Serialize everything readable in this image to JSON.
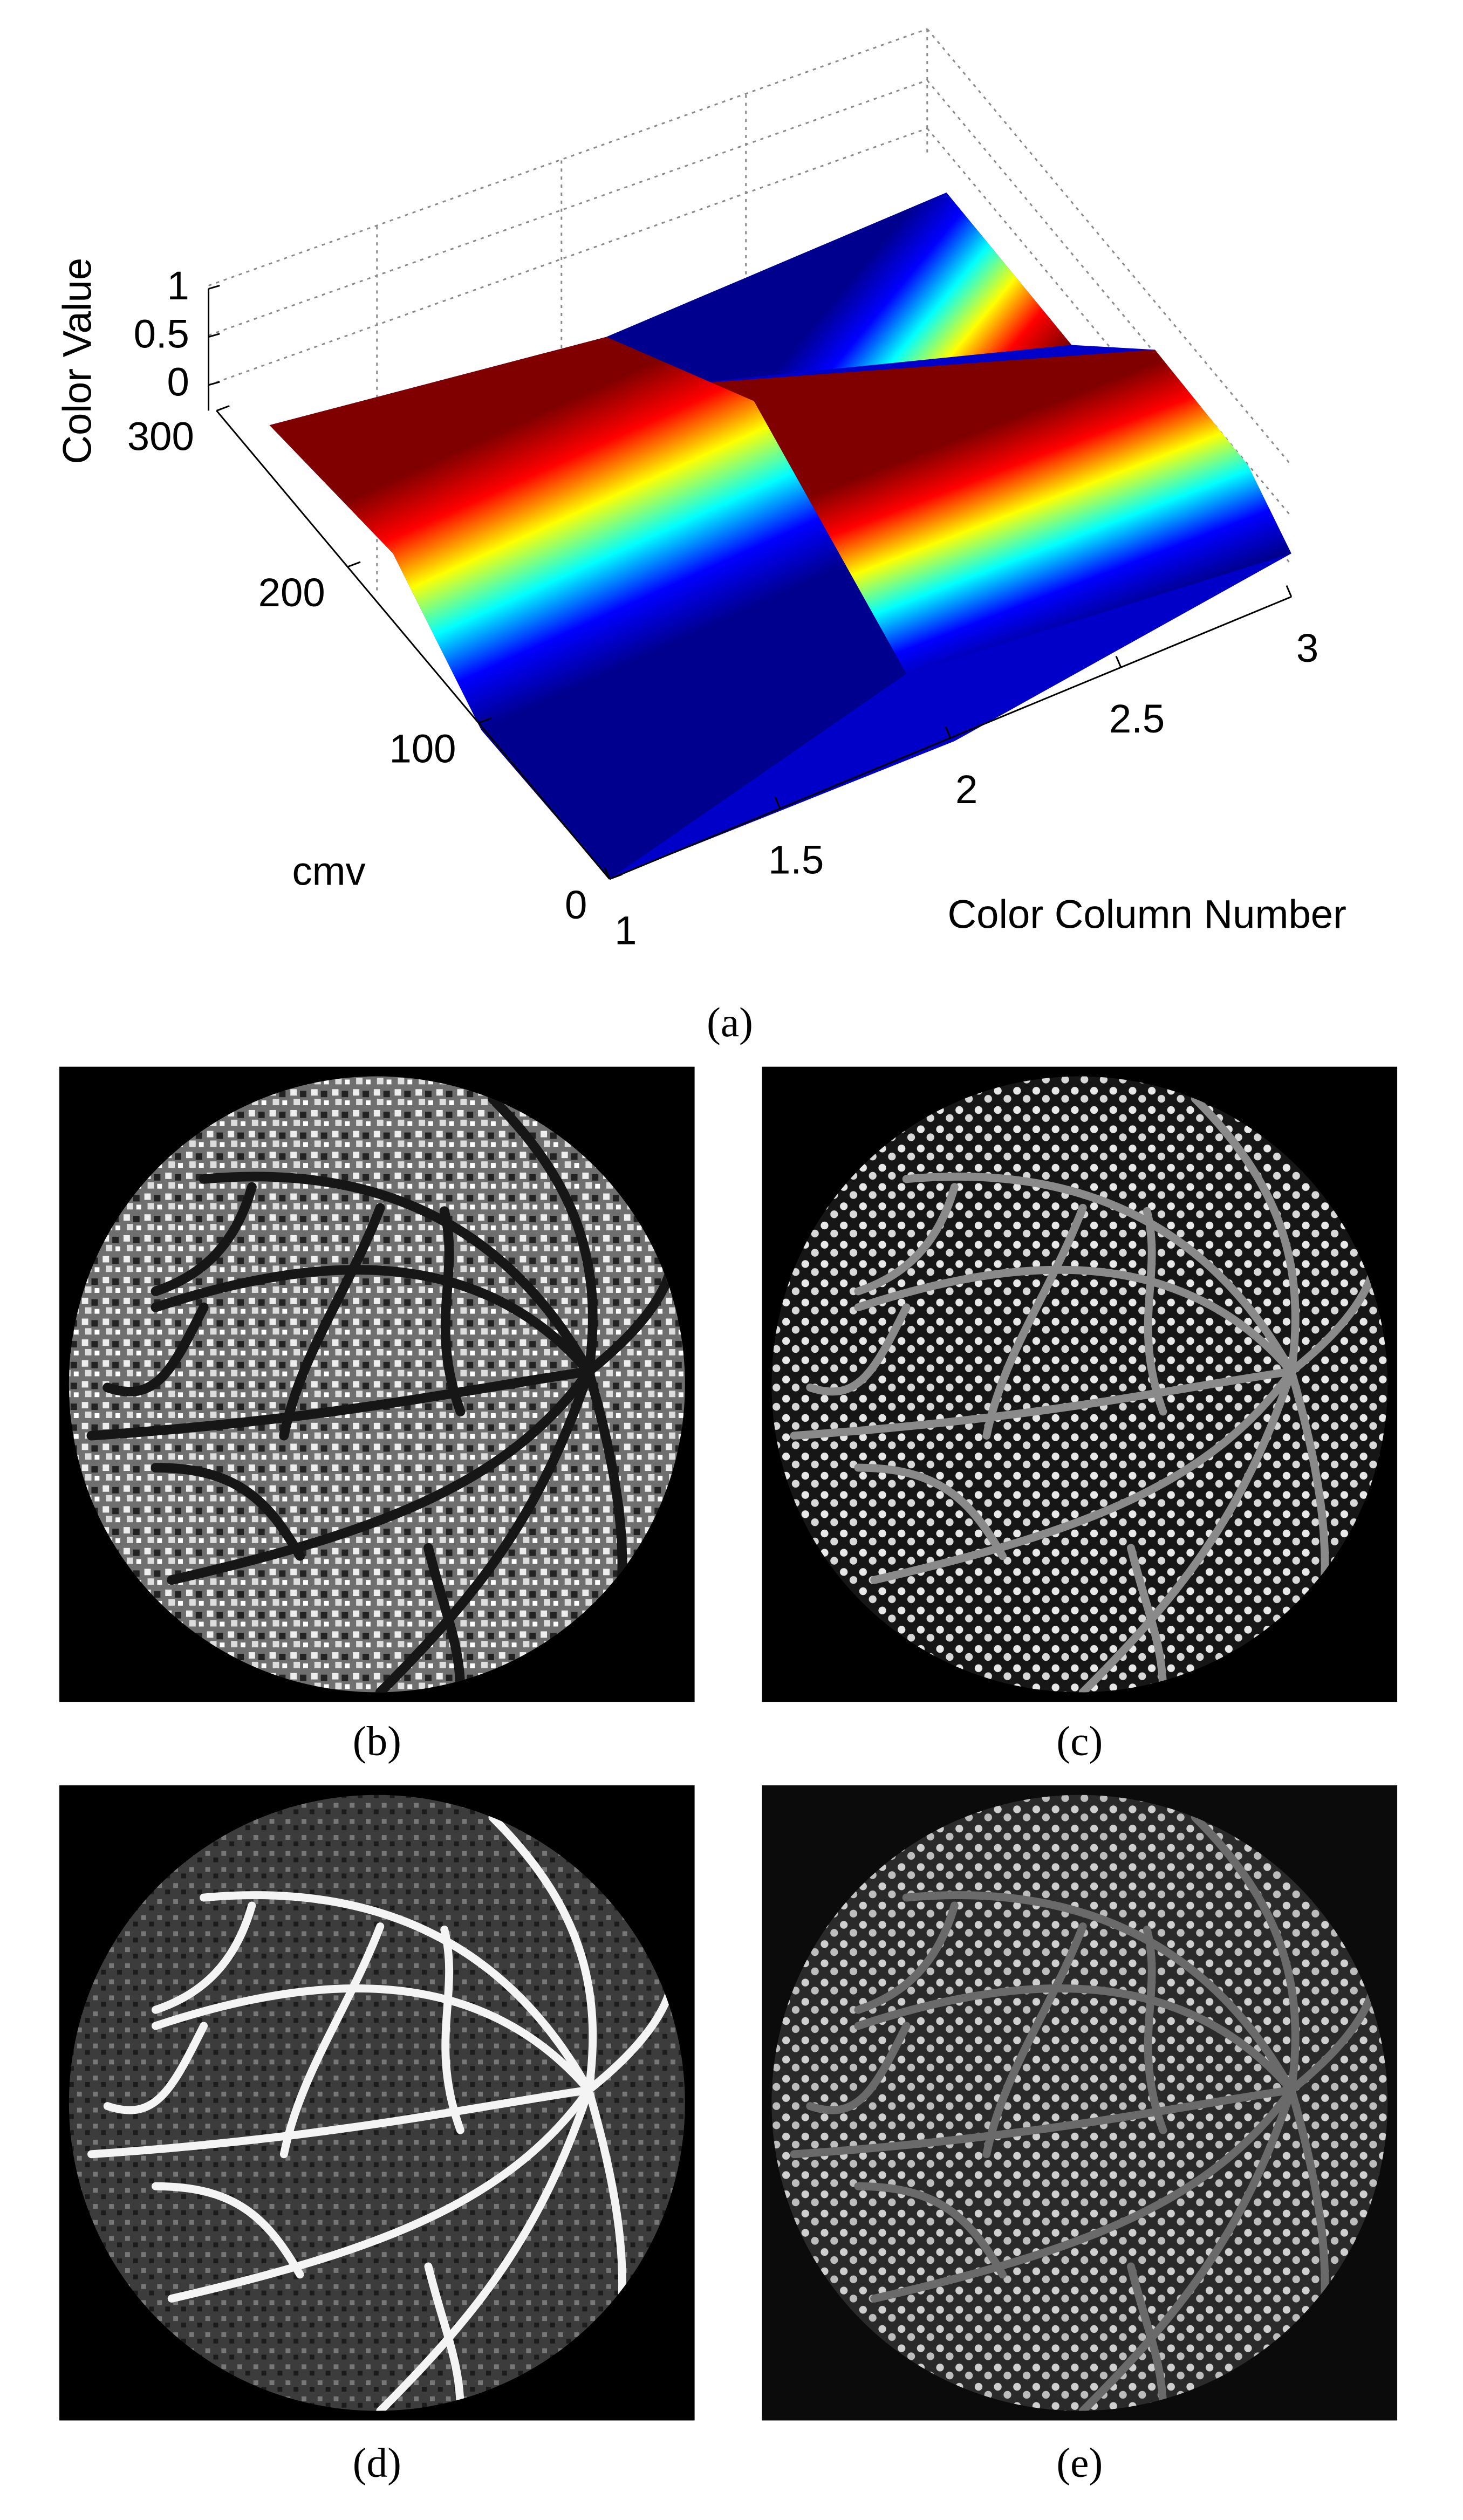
{
  "chart_data": {
    "type": "surface",
    "zlabel": "Color Value",
    "ylabel": "cmv",
    "xlabel": "Color Column Number",
    "xlim": [
      1,
      3
    ],
    "xticks": [
      1,
      1.5,
      2,
      2.5,
      3
    ],
    "ylim": [
      0,
      300
    ],
    "yticks": [
      0,
      100,
      200,
      300
    ],
    "zlim": [
      0,
      1
    ],
    "zticks": [
      0,
      0.5,
      1
    ],
    "colormap": "jet"
  },
  "captions": [
    "(a)",
    "(b)",
    "(c)",
    "(d)",
    "(e)"
  ]
}
